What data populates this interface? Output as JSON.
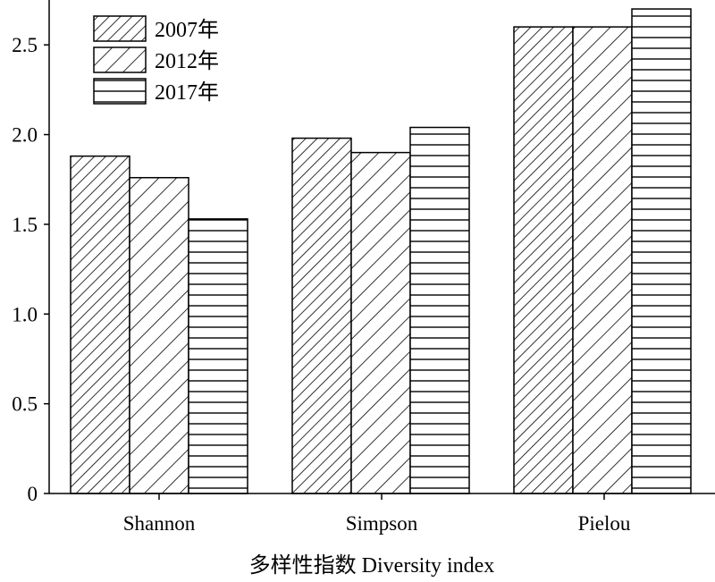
{
  "chart_data": {
    "type": "bar",
    "title": "",
    "xlabel": "多样性指数 Diversity index",
    "ylabel": "",
    "ylim": [
      0,
      2.75
    ],
    "yticks": [
      0,
      0.5,
      1.0,
      1.5,
      2.0,
      2.5
    ],
    "ytick_labels": [
      "0",
      "0.5",
      "1.0",
      "1.5",
      "2.0",
      "2.5"
    ],
    "categories": [
      "Shannon",
      "Simpson",
      "Pielou"
    ],
    "series": [
      {
        "name": "2007年",
        "values": [
          1.88,
          1.98,
          2.6
        ],
        "pattern": "dense-diagonal"
      },
      {
        "name": "2012年",
        "values": [
          1.76,
          1.9,
          2.6
        ],
        "pattern": "sparse-diagonal"
      },
      {
        "name": "2017年",
        "values": [
          1.53,
          2.04,
          2.7
        ],
        "pattern": "horizontal"
      }
    ],
    "legend_position": "top-left",
    "grid": false
  }
}
